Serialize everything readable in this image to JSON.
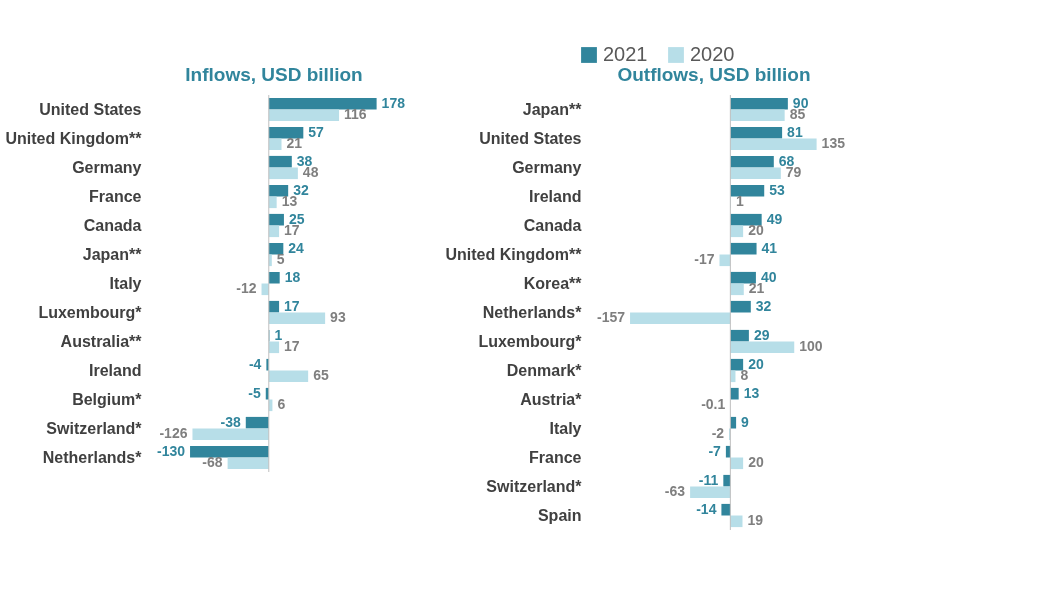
{
  "chart_data": [
    {
      "type": "bar",
      "orientation": "horizontal",
      "title": "Inflows, USD billion",
      "data_labels": true,
      "legend": "top",
      "categories": [
        "United States",
        "United Kingdom**",
        "Germany",
        "France",
        "Canada",
        "Japan**",
        "Italy",
        "Luxembourg*",
        "Australia**",
        "Ireland",
        "Belgium*",
        "Switzerland*",
        "Netherlands*"
      ],
      "series": [
        {
          "name": "2021",
          "color": "#31859c",
          "values": [
            178,
            57,
            38,
            32,
            25,
            24,
            18,
            17,
            1,
            -4,
            -5,
            -38,
            -130
          ]
        },
        {
          "name": "2020",
          "color": "#b7dee8",
          "values": [
            116,
            21,
            48,
            13,
            17,
            5,
            -12,
            93,
            17,
            65,
            6,
            -126,
            -68
          ]
        }
      ]
    },
    {
      "type": "bar",
      "orientation": "horizontal",
      "title": "Outflows, USD billion",
      "data_labels": true,
      "categories": [
        "Japan**",
        "United States",
        "Germany",
        "Ireland",
        "Canada",
        "United Kingdom**",
        "Korea**",
        "Netherlands*",
        "Luxembourg*",
        "Denmark*",
        "Austria*",
        "Italy",
        "France",
        "Switzerland*",
        "Spain"
      ],
      "series": [
        {
          "name": "2021",
          "color": "#31859c",
          "values": [
            90,
            81,
            68,
            53,
            49,
            41,
            40,
            32,
            29,
            20,
            13,
            9,
            -7,
            -11,
            -14
          ]
        },
        {
          "name": "2020",
          "color": "#b7dee8",
          "values": [
            85,
            135,
            79,
            1,
            20,
            -17,
            21,
            -157,
            100,
            8,
            -0.1,
            -2,
            20,
            -63,
            19
          ]
        }
      ]
    }
  ]
}
